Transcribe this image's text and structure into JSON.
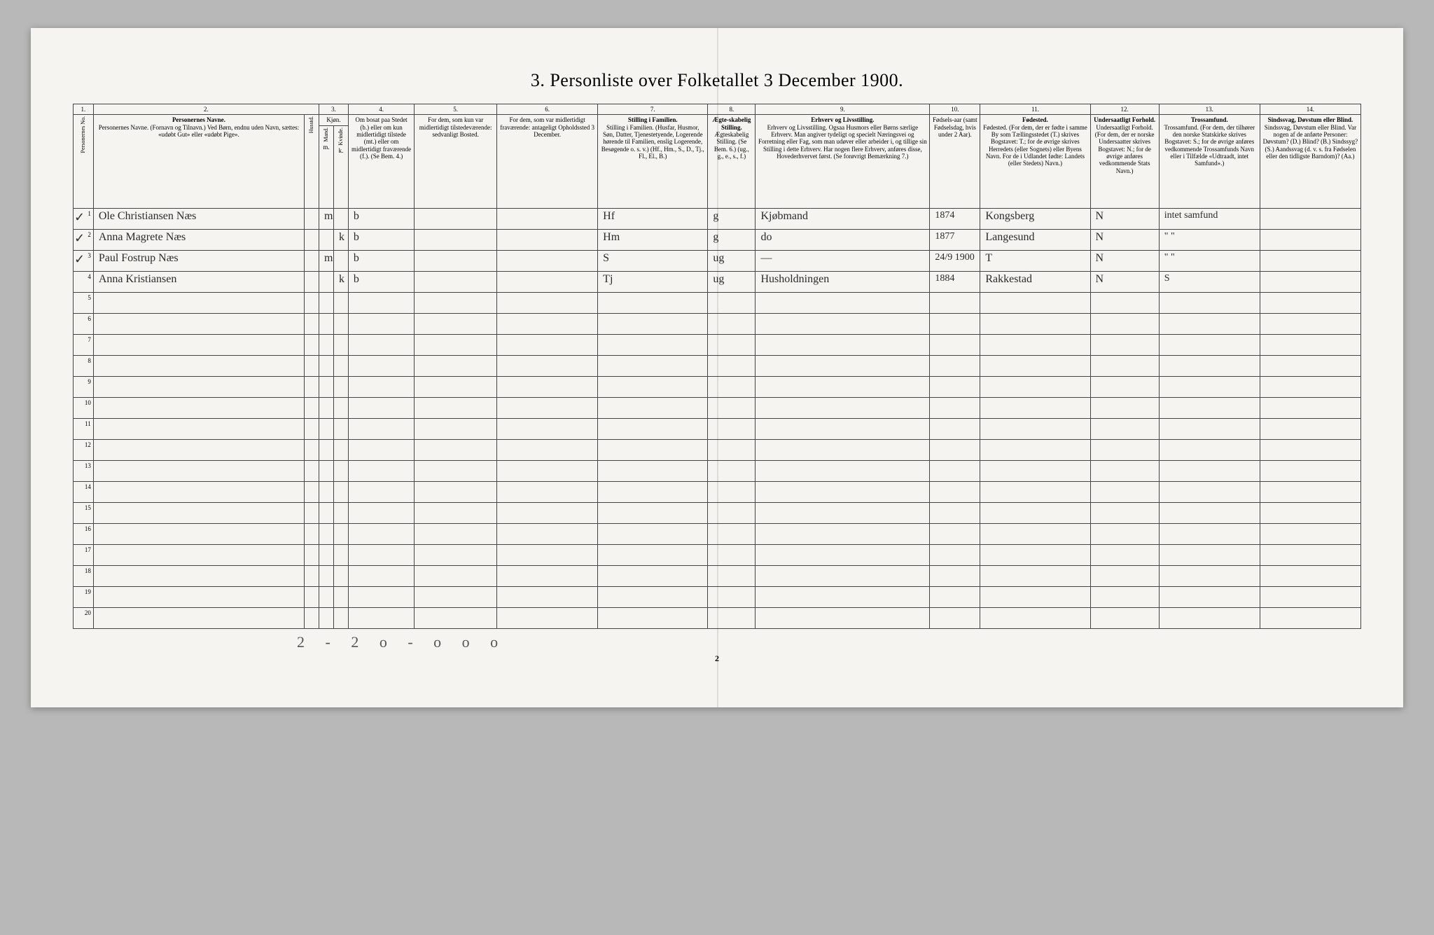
{
  "title": "3. Personliste over Folketallet 3 December 1900.",
  "page_number": "2",
  "footer_scribble": "2 - 2   o - o   o   o",
  "col_numbers": [
    "1.",
    "2.",
    "3.",
    "4.",
    "5.",
    "6.",
    "7.",
    "8.",
    "9.",
    "10.",
    "11.",
    "12.",
    "13.",
    "14."
  ],
  "headers": {
    "c1": "Personernes No.",
    "c2": "Personernes Navne.\n(Fornavn og Tilnavn.)\nVed Børn, endnu uden Navn, sættes: «udøbt Gut» eller «udøbt Pige».",
    "c3": "Kjøn.",
    "c3a": "Mand.",
    "c3b": "Kvinde.",
    "c3sub": "m.  k.",
    "c4": "Om bosat paa Stedet (b.) eller om kun midlertidigt tilstede (mt.) eller om midlertidigt fraværende (f.).\n(Se Bem. 4.)",
    "c5": "For dem, som kun var midlertidigt tilstedeværende:\nsedvanligt Bosted.",
    "c6": "For dem, som var midlertidigt fraværende:\nantageligt Opholdssted 3 December.",
    "c7": "Stilling i Familien.\n(Husfar, Husmor, Søn, Datter, Tjenestetyende, Logerende hørende til Familien, enslig Logerende, Besøgende o. s. v.)\n(Hf., Hm., S., D., Tj., Fl., El., B.)",
    "c8": "Ægteskabelig Stilling.\n(Se Bem. 6.)\n(ug., g., e., s., f.)",
    "c9": "Erhverv og Livsstilling.\nOgsaa Husmors eller Børns særlige Erhverv. Man angiver tydeligt og specielt Næringsvei og Forretning eller Fag, som man udøver eller arbeider i, og tillige sin Stilling i dette Erhverv. Har nogen flere Erhverv, anføres disse, Hovederhvervet først.\n(Se forøvrigt Bemærkning 7.)",
    "c10": "Fødsels-aar\n(samt Fødselsdag, hvis under 2 Aar).",
    "c11": "Fødested.\n(For dem, der er fødte i samme By som Tællingsstedet (T.) skrives Bogstavet: T.; for de øvrige skrives Herredets (eller Sognets) eller Byens Navn. For de i Udlandet fødte: Landets (eller Stedets) Navn.)",
    "c12": "Undersaatligt Forhold.\n(For dem, der er norske Undersaatter skrives Bogstavet: N.; for de øvrige anføres vedkommende Stats Navn.)",
    "c13": "Trossamfund.\n(For dem, der tilhører den norske Statskirke skrives Bogstavet: S.; for de øvrige anføres vedkommende Trossamfunds Navn eller i Tilfælde «Udtraadt, intet Samfund».)",
    "c14": "Sindssvag, Døvstum eller Blind.\nVar nogen af de anførte Personer:\nDøvstum? (D.)\nBlind? (B.)\nSindssyg? (S.)\nAandssvag (d. v. s. fra Fødselen eller den tidligste Barndom)? (Aa.)"
  },
  "rows": [
    {
      "n": "1",
      "check": true,
      "name": "Ole Christiansen Næs",
      "h": "",
      "m": "m",
      "k": "",
      "res": "b",
      "abs": "",
      "vis": "",
      "pos": "Hf",
      "mar": "g",
      "occ": "Kjøbmand",
      "yr": "1874",
      "bp": "Kongsberg",
      "nat": "N",
      "rel": "intet samfund",
      "dis": ""
    },
    {
      "n": "2",
      "check": true,
      "name": "Anna Magrete Næs",
      "h": "",
      "m": "",
      "k": "k",
      "res": "b",
      "abs": "",
      "vis": "",
      "pos": "Hm",
      "mar": "g",
      "occ": "do",
      "yr": "1877",
      "bp": "Langesund",
      "nat": "N",
      "rel": "\"     \"",
      "dis": ""
    },
    {
      "n": "3",
      "check": true,
      "name": "Paul Fostrup Næs",
      "h": "",
      "m": "m",
      "k": "",
      "res": "b",
      "abs": "",
      "vis": "",
      "pos": "S",
      "mar": "ug",
      "occ": "—",
      "yr": "24/9 1900",
      "bp": "T",
      "nat": "N",
      "rel": "\"     \"",
      "dis": ""
    },
    {
      "n": "4",
      "check": false,
      "name": "Anna Kristiansen",
      "h": "",
      "m": "",
      "k": "k",
      "res": "b",
      "abs": "",
      "vis": "",
      "pos": "Tj",
      "mar": "ug",
      "occ": "Husholdningen",
      "yr": "1884",
      "bp": "Rakkestad",
      "nat": "N",
      "rel": "S",
      "dis": ""
    },
    {
      "n": "5"
    },
    {
      "n": "6"
    },
    {
      "n": "7"
    },
    {
      "n": "8"
    },
    {
      "n": "9"
    },
    {
      "n": "10"
    },
    {
      "n": "11"
    },
    {
      "n": "12"
    },
    {
      "n": "13"
    },
    {
      "n": "14"
    },
    {
      "n": "15"
    },
    {
      "n": "16"
    },
    {
      "n": "17"
    },
    {
      "n": "18"
    },
    {
      "n": "19"
    },
    {
      "n": "20"
    }
  ]
}
